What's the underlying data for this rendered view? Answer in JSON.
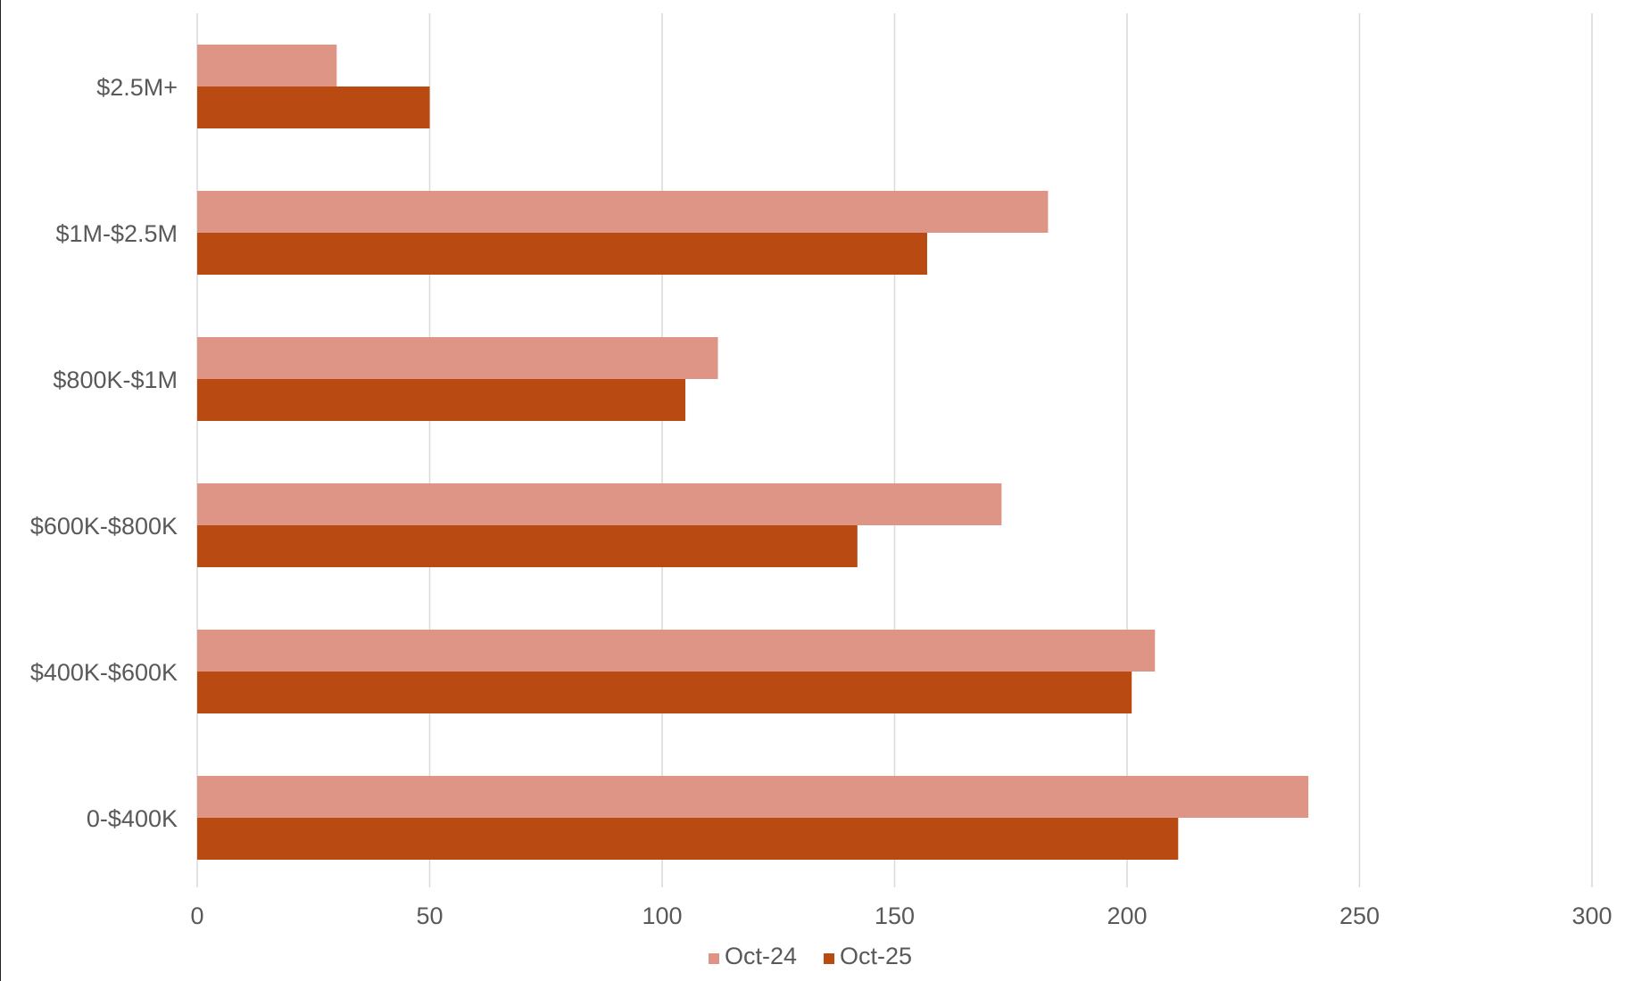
{
  "chart_data": {
    "type": "bar",
    "orientation": "horizontal",
    "title": "",
    "xlabel": "",
    "ylabel": "",
    "categories": [
      "$2.5M+",
      "$1M-$2.5M",
      "$800K-$1M",
      "$600K-$800K",
      "$400K-$600K",
      "0-$400K"
    ],
    "series": [
      {
        "name": "Oct-24",
        "color": "#df9585",
        "values": [
          30,
          183,
          112,
          173,
          206,
          239
        ]
      },
      {
        "name": "Oct-25",
        "color": "#b84a12",
        "values": [
          50,
          157,
          105,
          142,
          201,
          211
        ]
      }
    ],
    "xlim": [
      0,
      300
    ],
    "x_ticks": [
      "0",
      "50",
      "100",
      "150",
      "200",
      "250",
      "300"
    ],
    "grid": true,
    "gridline_color": "#d9d9d9",
    "legend_position": "bottom"
  }
}
